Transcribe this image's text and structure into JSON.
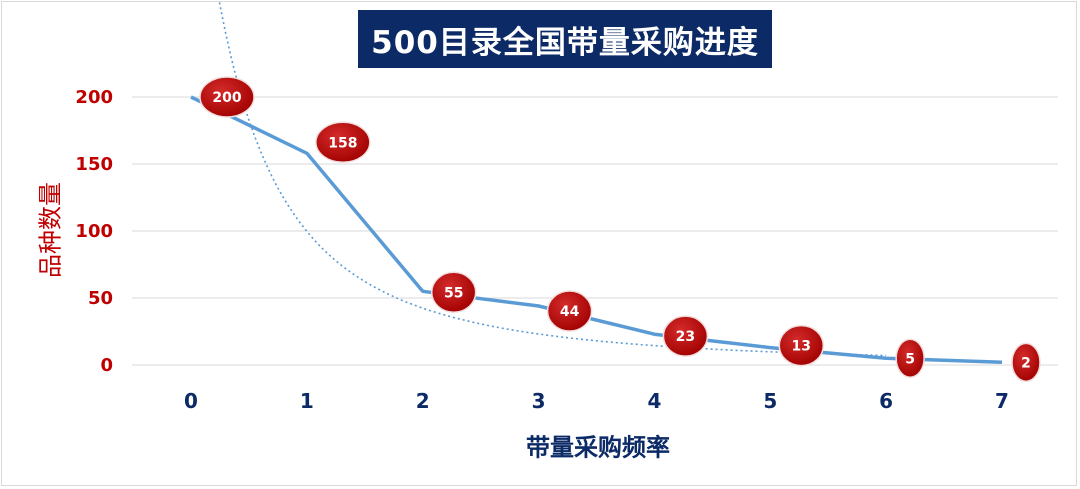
{
  "chart_data": {
    "type": "line",
    "title": "500目录全国带量采购进度",
    "xlabel": "带量采购频率",
    "ylabel": "品种数量",
    "x": [
      0,
      1,
      2,
      3,
      4,
      5,
      6,
      7
    ],
    "series": [
      {
        "values": [
          200,
          158,
          55,
          44,
          23,
          13,
          5,
          2
        ],
        "data_labels": [
          "200",
          "158",
          "55",
          "44",
          "23",
          "13",
          "5",
          "2"
        ]
      }
    ],
    "trendline": {
      "type": "power",
      "style": "dotted"
    },
    "yticks": [
      "0",
      "50",
      "100",
      "150",
      "200"
    ],
    "xticks": [
      "0",
      "1",
      "2",
      "3",
      "4",
      "5",
      "6",
      "7"
    ],
    "ylim": [
      0,
      200
    ],
    "xlim": [
      0,
      7
    ],
    "grid": "horizontal",
    "colors": {
      "title_bg": "#0b2a66",
      "line": "#5b9bd5",
      "label_bubble": "#c00000",
      "ytick": "#c00000",
      "xtick": "#0b2a66"
    }
  }
}
